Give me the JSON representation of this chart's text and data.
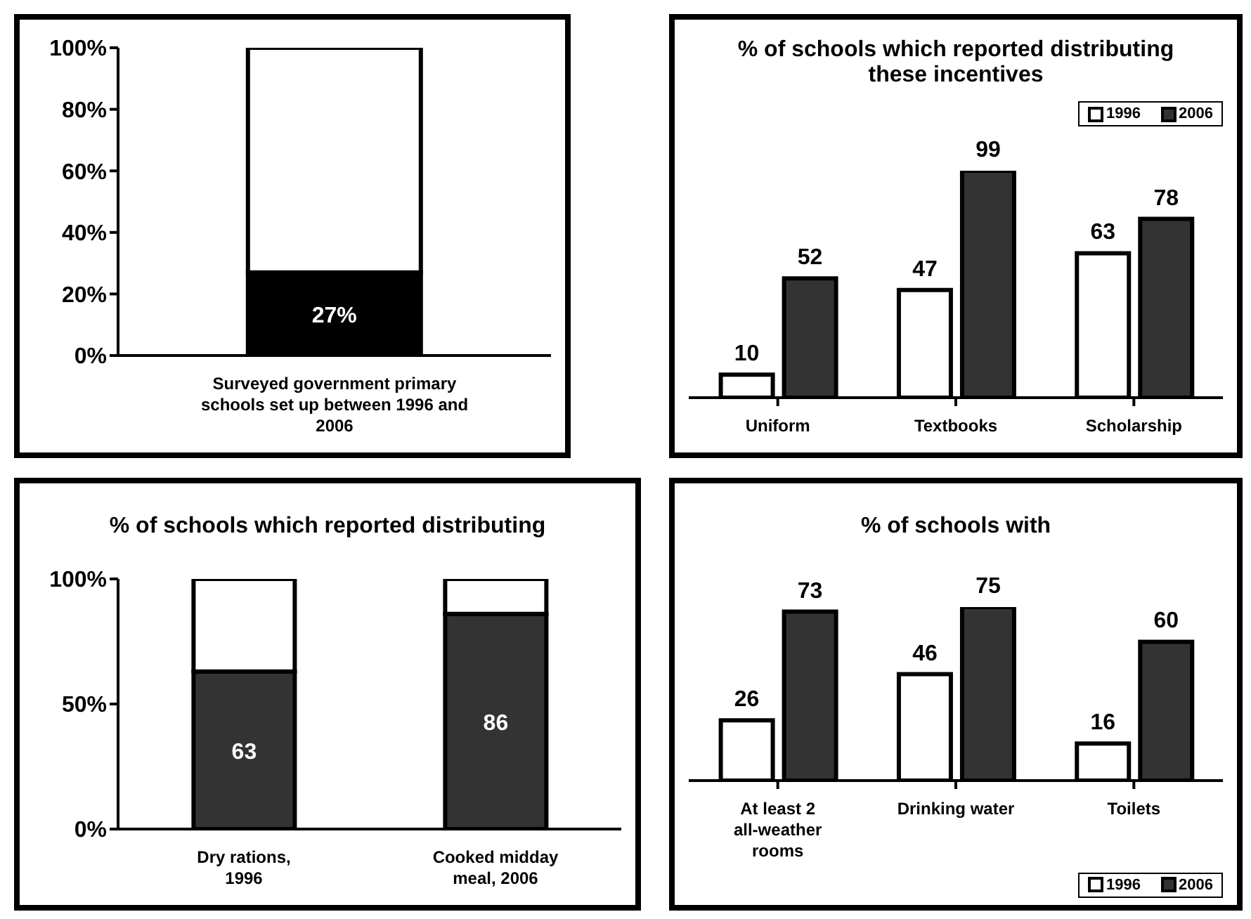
{
  "chart_data": [
    {
      "type": "bar",
      "stacked": true,
      "categories": [
        "Surveyed government primary schools set up between 1996 and 2006"
      ],
      "series": [
        {
          "color": "#000000",
          "values": [
            27
          ],
          "value_labels": [
            "27%"
          ]
        },
        {
          "color": "#ffffff",
          "values": [
            73
          ]
        }
      ],
      "ylim": [
        0,
        100
      ],
      "yticks": [
        {
          "value": 0,
          "label": "0%"
        },
        {
          "value": 20,
          "label": "20%"
        },
        {
          "value": 40,
          "label": "40%"
        },
        {
          "value": 60,
          "label": "60%"
        },
        {
          "value": 80,
          "label": "80%"
        },
        {
          "value": 100,
          "label": "100%"
        }
      ],
      "grid": false,
      "legend": false
    },
    {
      "type": "bar",
      "title": "% of schools which reported distributing these incentives",
      "categories": [
        "Uniform",
        "Textbooks",
        "Scholarship"
      ],
      "series": [
        {
          "name": "1996",
          "color": "#ffffff",
          "values": [
            10,
            47,
            63
          ]
        },
        {
          "name": "2006",
          "color": "#333333",
          "values": [
            52,
            99,
            78
          ]
        }
      ],
      "data_labels": true,
      "tick_labels": "x",
      "grid": false,
      "legend": "top right"
    },
    {
      "type": "bar",
      "stacked": true,
      "title": "% of schools which reported distributing",
      "categories": [
        "Dry rations, 1996",
        "Cooked midday meal, 2006"
      ],
      "series": [
        {
          "color": "#333333",
          "values": [
            63,
            86
          ],
          "value_labels": [
            "63",
            "86"
          ]
        },
        {
          "color": "#ffffff",
          "values": [
            37,
            14
          ]
        }
      ],
      "ylim": [
        0,
        100
      ],
      "yticks": [
        {
          "value": 0,
          "label": "0%"
        },
        {
          "value": 50,
          "label": "50%"
        },
        {
          "value": 100,
          "label": "100%"
        }
      ],
      "grid": false,
      "legend": false
    },
    {
      "type": "bar",
      "title": "% of schools with",
      "categories": [
        "At least 2 all-weather rooms",
        "Drinking water",
        "Toilets"
      ],
      "series": [
        {
          "name": "1996",
          "color": "#ffffff",
          "values": [
            26,
            46,
            16
          ]
        },
        {
          "name": "2006",
          "color": "#333333",
          "values": [
            73,
            75,
            60
          ]
        }
      ],
      "data_labels": true,
      "tick_labels": "x",
      "grid": false,
      "legend": "bottom right"
    }
  ]
}
